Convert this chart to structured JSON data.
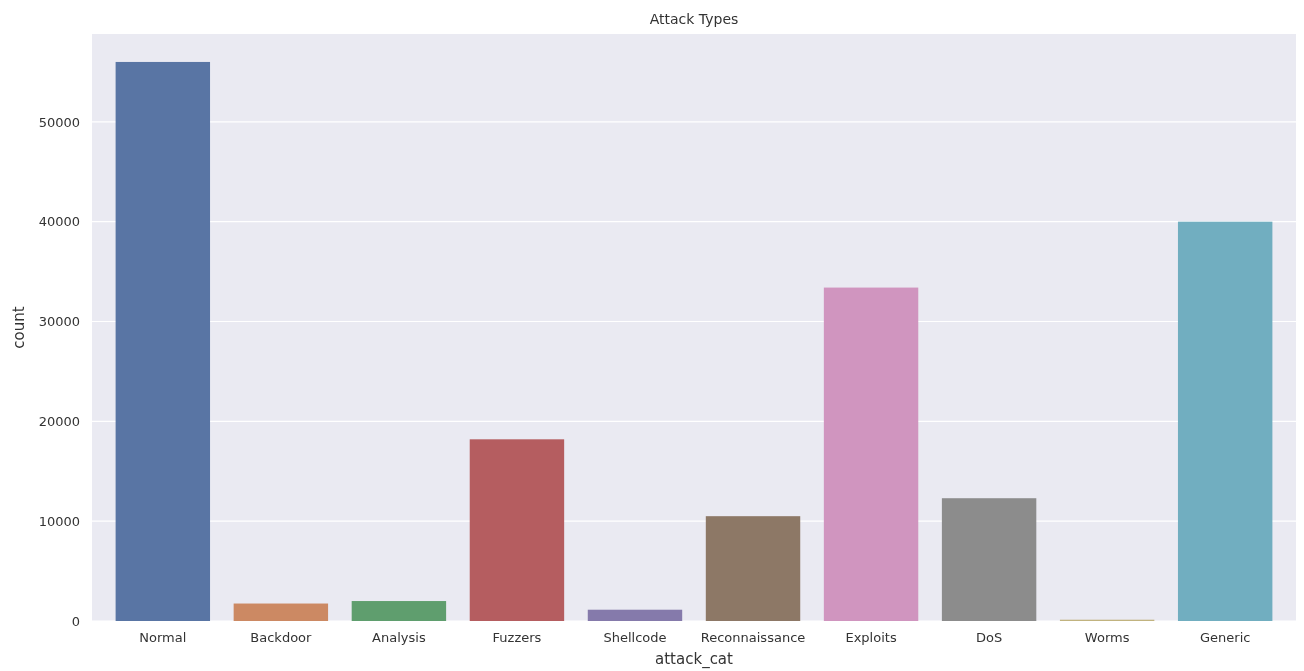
{
  "chart_data": {
    "type": "bar",
    "title": "Attack Types",
    "xlabel": "attack_cat",
    "ylabel": "count",
    "categories": [
      "Normal",
      "Backdoor",
      "Analysis",
      "Fuzzers",
      "Shellcode",
      "Reconnaissance",
      "Exploits",
      "DoS",
      "Worms",
      "Generic"
    ],
    "values": [
      56000,
      1750,
      2000,
      18200,
      1130,
      10500,
      33400,
      12300,
      130,
      40000
    ],
    "colors": [
      "#5975a4",
      "#cc8963",
      "#5f9e6e",
      "#b55d60",
      "#857aab",
      "#8d7866",
      "#d095bf",
      "#8c8c8c",
      "#c1b37f",
      "#71aec0"
    ],
    "ylim": [
      0,
      58800
    ],
    "yticks": [
      0,
      10000,
      20000,
      30000,
      40000,
      50000
    ],
    "grid": "y"
  }
}
